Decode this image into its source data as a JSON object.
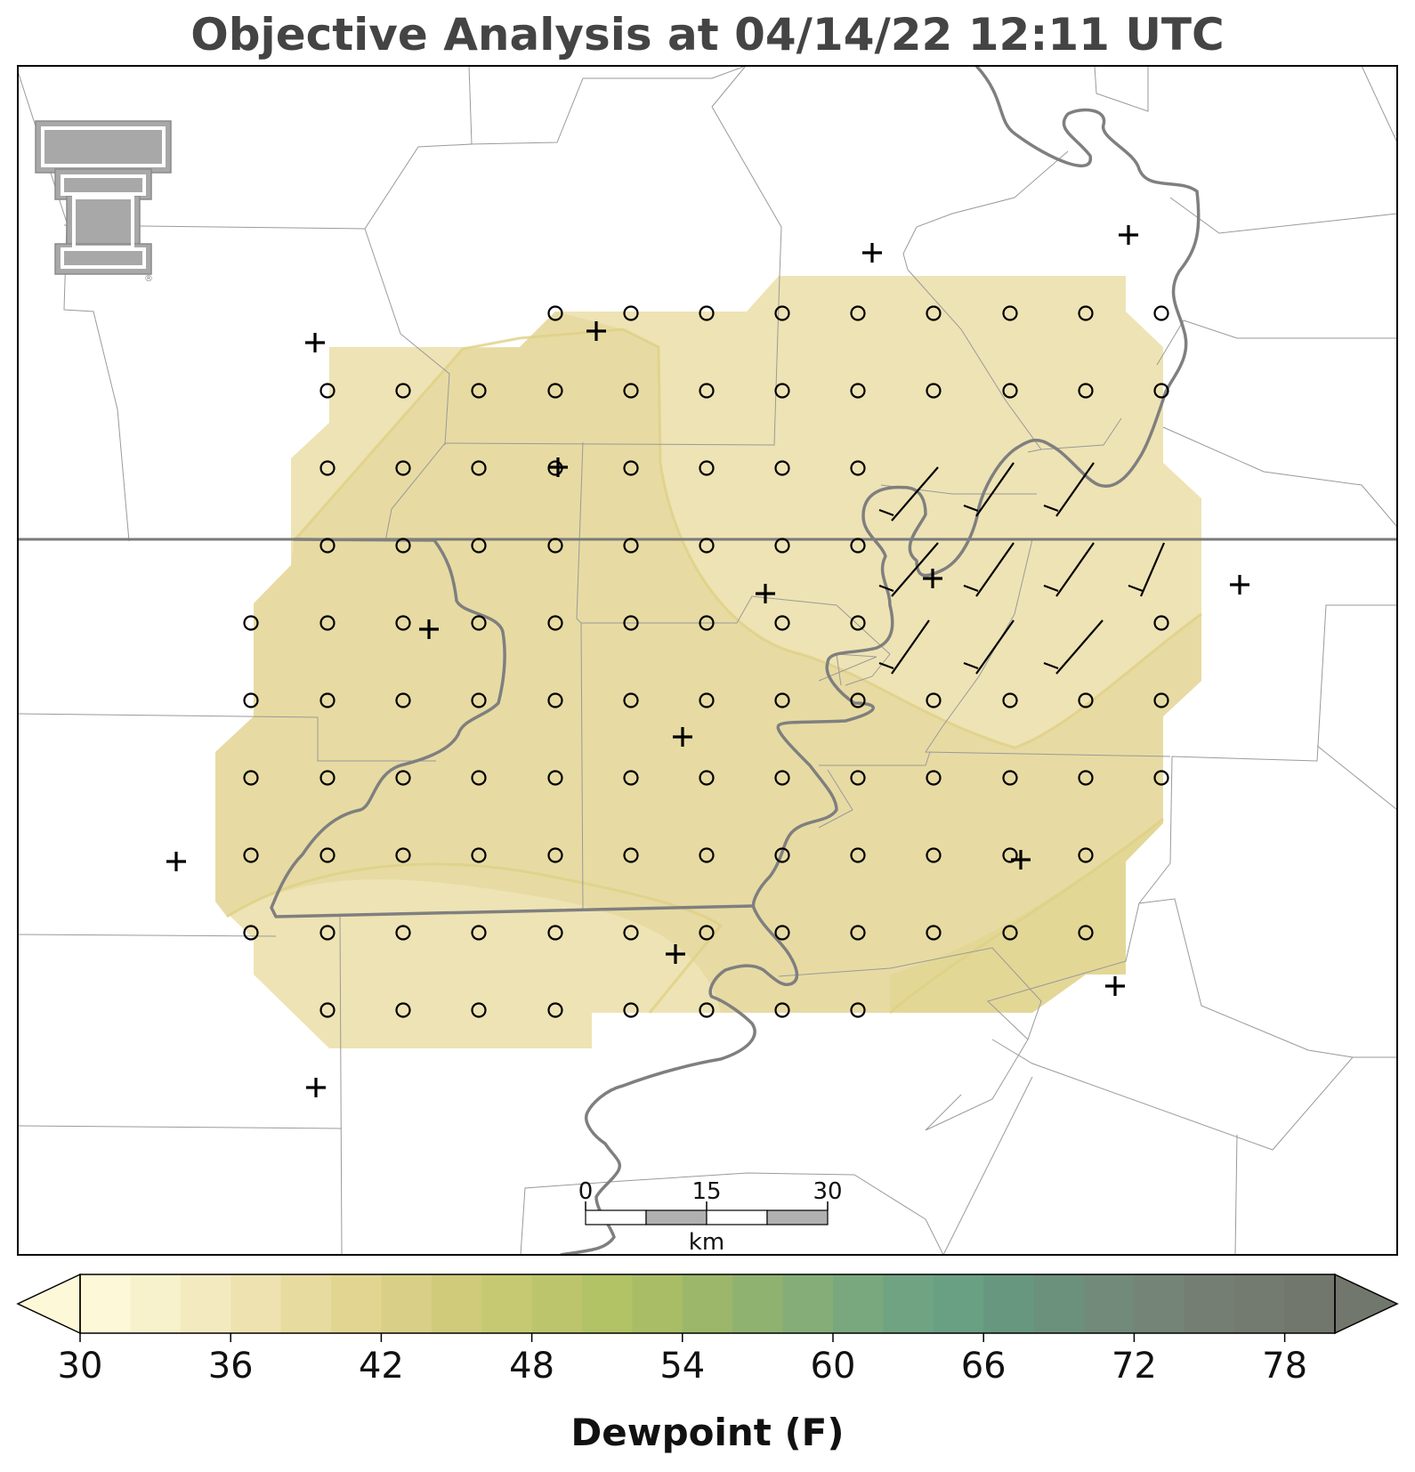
{
  "title": "Objective Analysis at 04/14/22 12:11 UTC",
  "logo": {
    "name": "texas-tech-double-t-logo",
    "text": "®"
  },
  "colorbar": {
    "label": "Dewpoint (F)",
    "ticks": [
      "30",
      "36",
      "42",
      "48",
      "54",
      "60",
      "66",
      "72",
      "78"
    ],
    "min": 30,
    "max": 80,
    "step": 2,
    "colors": [
      "#fdf9d8",
      "#f8f2cc",
      "#f3eac0",
      "#ede2b0",
      "#e7dba0",
      "#e2d592",
      "#d9cf86",
      "#cfcb7a",
      "#c6c972",
      "#bcc56c",
      "#b2c366",
      "#a8bd66",
      "#9cb769",
      "#90b270",
      "#84ad78",
      "#7aa87e",
      "#70a382",
      "#699f83",
      "#67987f",
      "#6b907c",
      "#718a7a",
      "#748477",
      "#747e73",
      "#737a70",
      "#72776d"
    ]
  },
  "scale_bar": {
    "labels": [
      "0",
      "15",
      "30"
    ],
    "unit": "km"
  },
  "map_layers": {
    "shading": "dewpoint analysis, values approx 38–42 F",
    "station_marker": "plus-icon",
    "grid_marker": "circle-icon",
    "wind_barbs": "wind-barb-icon"
  }
}
